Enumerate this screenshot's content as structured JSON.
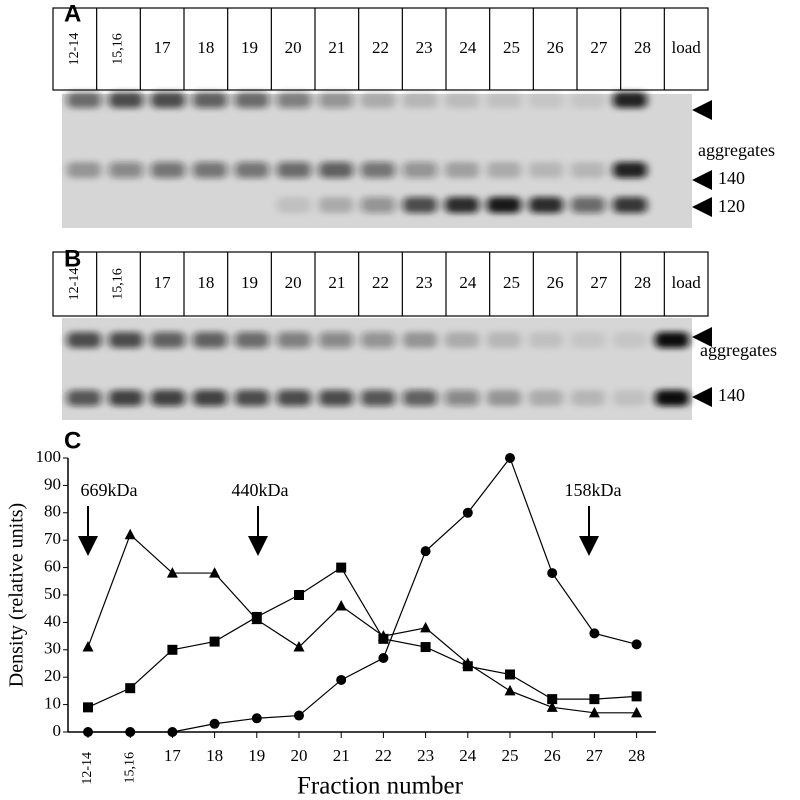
{
  "panels": [
    {
      "label": "A",
      "lanes": [
        "12-14",
        "15,16",
        "17",
        "18",
        "19",
        "20",
        "21",
        "22",
        "23",
        "24",
        "25",
        "26",
        "27",
        "28",
        "load"
      ],
      "markers": [
        "aggregates",
        "140",
        "120"
      ]
    },
    {
      "label": "B",
      "lanes": [
        "12-14",
        "15,16",
        "17",
        "18",
        "19",
        "20",
        "21",
        "22",
        "23",
        "24",
        "25",
        "26",
        "27",
        "28",
        "load"
      ],
      "markers": [
        "aggregates",
        "140"
      ]
    }
  ],
  "chart_data": {
    "type": "line",
    "panel_label": "C",
    "xlabel": "Fraction number",
    "ylabel": "Density (relative units)",
    "categories": [
      "12-14",
      "15,16",
      "17",
      "18",
      "19",
      "20",
      "21",
      "22",
      "23",
      "24",
      "25",
      "26",
      "27",
      "28"
    ],
    "ylim": [
      0,
      100
    ],
    "yticks": [
      0,
      10,
      20,
      30,
      40,
      50,
      60,
      70,
      80,
      90,
      100
    ],
    "series": [
      {
        "marker": "circle",
        "color": "#000000",
        "values": [
          0,
          0,
          0,
          3,
          5,
          6,
          19,
          27,
          66,
          80,
          100,
          58,
          36,
          32
        ]
      },
      {
        "marker": "square",
        "color": "#000000",
        "values": [
          9,
          16,
          30,
          33,
          42,
          50,
          60,
          34,
          31,
          24,
          21,
          12,
          12,
          13
        ]
      },
      {
        "marker": "triangle",
        "color": "#000000",
        "values": [
          31,
          72,
          58,
          58,
          41,
          31,
          46,
          35,
          38,
          25,
          15,
          9,
          7,
          7
        ]
      }
    ],
    "annotations": [
      "669kDa",
      "440kDa",
      "158kDa"
    ]
  }
}
